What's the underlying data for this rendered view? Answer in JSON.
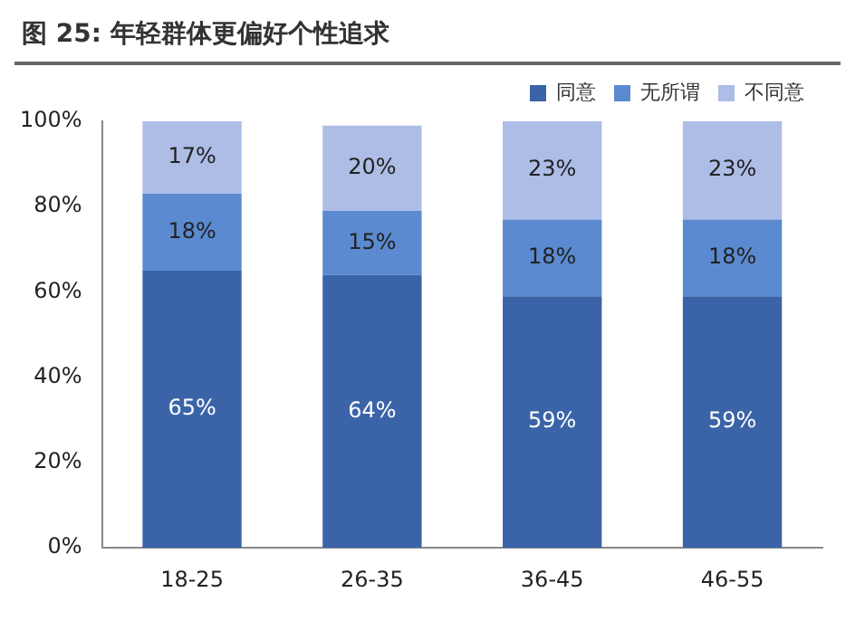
{
  "chart_data": {
    "type": "bar",
    "title": "图 25:  年轻群体更偏好个性追求",
    "categories": [
      "18-25",
      "26-35",
      "36-45",
      "46-55"
    ],
    "stacked": true,
    "series": [
      {
        "name": "同意",
        "color": "#3b64a8",
        "values": [
          65,
          64,
          59,
          59
        ],
        "value_labels": [
          "65%",
          "64%",
          "59%",
          "59%"
        ]
      },
      {
        "name": "无所谓",
        "color": "#5b8ad0",
        "values": [
          18,
          15,
          18,
          18
        ],
        "value_labels": [
          "18%",
          "15%",
          "18%",
          "18%"
        ]
      },
      {
        "name": "不同意",
        "color": "#aebde6",
        "values": [
          17,
          20,
          23,
          23
        ],
        "value_labels": [
          "17%",
          "20%",
          "23%",
          "23%"
        ]
      }
    ],
    "ylim": [
      0,
      100
    ],
    "yticks": [
      {
        "value": 0,
        "label": "0%"
      },
      {
        "value": 20,
        "label": "20%"
      },
      {
        "value": 40,
        "label": "40%"
      },
      {
        "value": 60,
        "label": "60%"
      },
      {
        "value": 80,
        "label": "80%"
      },
      {
        "value": 100,
        "label": "100%"
      }
    ],
    "grid": false,
    "legend": "top right"
  }
}
